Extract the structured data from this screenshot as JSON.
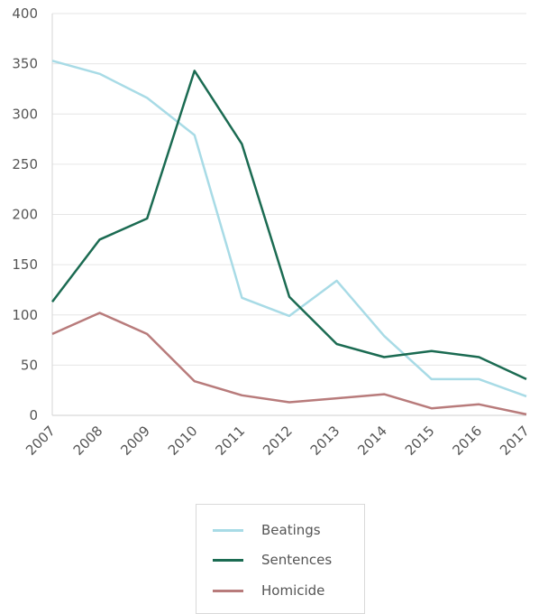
{
  "chart_data": {
    "type": "line",
    "title": "",
    "xlabel": "",
    "ylabel": "",
    "categories": [
      "2007",
      "2008",
      "2009",
      "2010",
      "2011",
      "2012",
      "2013",
      "2014",
      "2015",
      "2016",
      "2017"
    ],
    "ylim": [
      0,
      400
    ],
    "yticks": [
      0,
      50,
      100,
      150,
      200,
      250,
      300,
      350,
      400
    ],
    "grid": true,
    "legend_position": "bottom",
    "series": [
      {
        "name": "Beatings",
        "color": "#a8dbe6",
        "values": [
          353,
          340,
          316,
          279,
          117,
          99,
          134,
          79,
          36,
          36,
          19
        ]
      },
      {
        "name": "Sentences",
        "color": "#1b6b52",
        "values": [
          113,
          175,
          196,
          343,
          270,
          118,
          71,
          58,
          64,
          58,
          36
        ]
      },
      {
        "name": "Homicide",
        "color": "#b87b7b",
        "values": [
          81,
          102,
          81,
          34,
          20,
          13,
          17,
          21,
          7,
          11,
          1
        ]
      }
    ]
  }
}
